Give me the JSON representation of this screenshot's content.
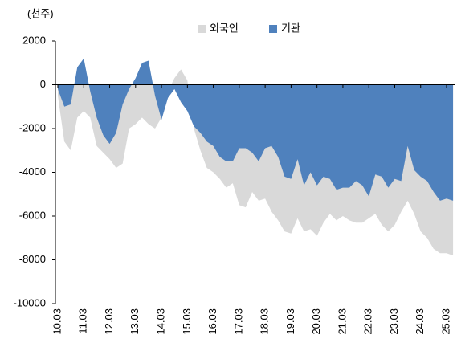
{
  "chart_data": {
    "type": "area",
    "unit_label": "(천주)",
    "categories": [
      "10.03",
      null,
      null,
      null,
      "11.03",
      null,
      null,
      null,
      "12.03",
      null,
      null,
      null,
      "13.03",
      null,
      null,
      null,
      "14.03",
      null,
      null,
      null,
      "15.03",
      null,
      null,
      null,
      "16.03",
      null,
      null,
      null,
      "17.03",
      null,
      null,
      null,
      "18.03",
      null,
      null,
      null,
      "19.03",
      null,
      null,
      null,
      "20.03",
      null,
      null,
      null,
      "21.03",
      null,
      null,
      null,
      "22.03",
      null,
      null,
      null,
      "23.03",
      null,
      null,
      null,
      "24.03",
      null,
      null,
      null,
      "25.03",
      null
    ],
    "series": [
      {
        "name": "외국인",
        "color": "#d9d9d9",
        "values": [
          -500,
          -2600,
          -3000,
          -1500,
          -1200,
          -1500,
          -2800,
          -3100,
          -3400,
          -3800,
          -3600,
          -2000,
          -1800,
          -1500,
          -1800,
          -2000,
          -1500,
          -300,
          300,
          700,
          200,
          -2000,
          -3000,
          -3800,
          -4000,
          -4300,
          -4700,
          -4500,
          -5500,
          -5600,
          -4900,
          -5300,
          -5200,
          -5800,
          -6200,
          -6700,
          -6800,
          -6100,
          -6700,
          -6600,
          -6900,
          -6300,
          -5900,
          -6200,
          -6000,
          -6200,
          -6300,
          -6300,
          -6100,
          -5900,
          -6400,
          -6700,
          -6400,
          -5800,
          -5300,
          -5900,
          -6700,
          -7000,
          -7500,
          -7700,
          -7700,
          -7800
        ]
      },
      {
        "name": "기관",
        "color": "#4f81bd",
        "values": [
          -200,
          -1000,
          -900,
          800,
          1200,
          -300,
          -1500,
          -2300,
          -2700,
          -2200,
          -900,
          -200,
          300,
          1000,
          1100,
          -500,
          -1600,
          -600,
          -200,
          -800,
          -1200,
          -1900,
          -2200,
          -2600,
          -2800,
          -3300,
          -3500,
          -3500,
          -2900,
          -2900,
          -3100,
          -3500,
          -2900,
          -2800,
          -3300,
          -4200,
          -4300,
          -3400,
          -4600,
          -4000,
          -4600,
          -4200,
          -4300,
          -4800,
          -4700,
          -4700,
          -4400,
          -4600,
          -5100,
          -4100,
          -4200,
          -4700,
          -4300,
          -4400,
          -2800,
          -3900,
          -4200,
          -4400,
          -4900,
          -5300,
          -5200,
          -5300
        ]
      }
    ],
    "ylim": [
      -10000,
      2000
    ],
    "yticks": [
      2000,
      0,
      -2000,
      -4000,
      -6000,
      -8000,
      -10000
    ],
    "legend": "top"
  }
}
